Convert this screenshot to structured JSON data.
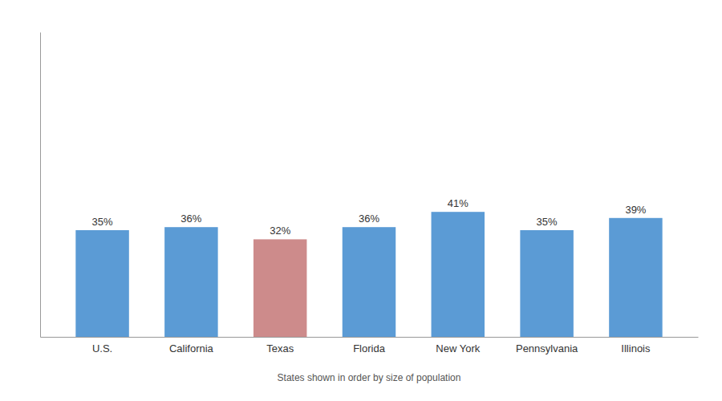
{
  "chart_data": {
    "type": "bar",
    "categories": [
      "U.S.",
      "California",
      "Texas",
      "Florida",
      "New York",
      "Pennsylvania",
      "Illinois"
    ],
    "values": [
      35,
      36,
      32,
      36,
      41,
      35,
      39
    ],
    "value_labels": [
      "35%",
      "36%",
      "32%",
      "36%",
      "41%",
      "35%",
      "39%"
    ],
    "colors": [
      "#5B9BD5",
      "#5B9BD5",
      "#CD8B8B",
      "#5B9BD5",
      "#5B9BD5",
      "#5B9BD5",
      "#5B9BD5"
    ],
    "xlabel": "States shown in order by size of population",
    "ylim": [
      0,
      100
    ],
    "tick_labels": "x",
    "data_labels": true,
    "grid": false
  }
}
